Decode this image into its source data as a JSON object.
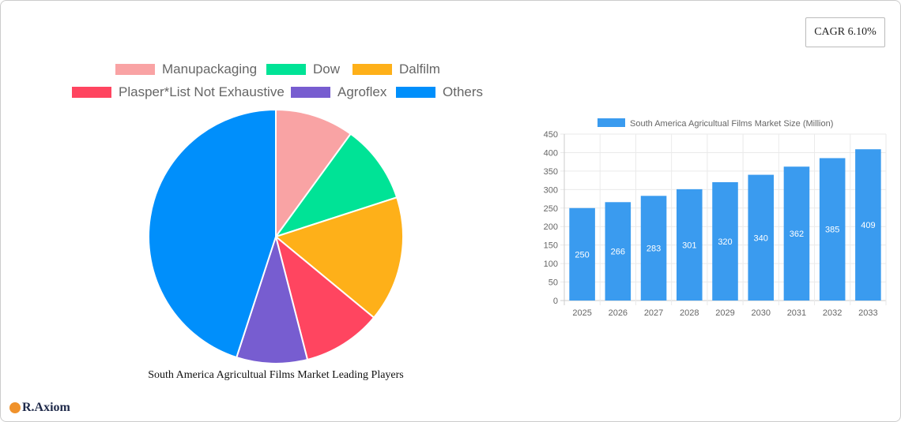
{
  "cagr_label": "CAGR 6.10%",
  "brand": "R.Axiom",
  "chart_data": [
    {
      "type": "pie",
      "title": "South America Agricultual Films Market Leading Players",
      "legend_position": "top",
      "labels": [
        "Manupackaging",
        "Dow",
        "Dalfilm",
        "Plasper*List Not Exhaustive",
        "Agroflex",
        "Others"
      ],
      "values": [
        10,
        10,
        16,
        10,
        9,
        45
      ],
      "colors": [
        "#f9a3a4",
        "#00e396",
        "#feb019",
        "#ff4560",
        "#775dd0",
        "#008ffb"
      ]
    },
    {
      "type": "bar",
      "legend_position": "top",
      "series": [
        {
          "name": "South America Agricultual Films Market Size (Million)",
          "values": [
            250,
            266,
            283,
            301,
            320,
            340,
            362,
            385,
            409
          ],
          "color": "#3a9bef"
        }
      ],
      "categories": [
        "2025",
        "2026",
        "2027",
        "2028",
        "2029",
        "2030",
        "2031",
        "2032",
        "2033"
      ],
      "ylim": [
        0,
        450
      ],
      "yticks": [
        0,
        50,
        100,
        150,
        200,
        250,
        300,
        350,
        400,
        450
      ],
      "grid": true,
      "data_labels": true
    }
  ]
}
